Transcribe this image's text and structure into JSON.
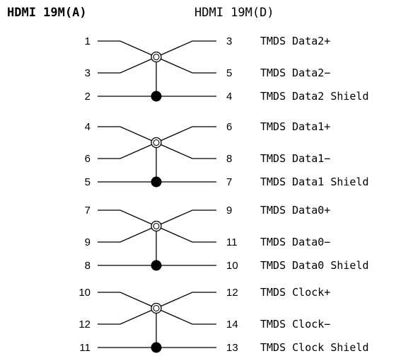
{
  "headers": {
    "left": "HDMI 19M(A)",
    "right": "HDMI 19M(D)"
  },
  "pairs": [
    {
      "pos": {
        "left": "1",
        "right": "3",
        "label": "TMDS Data2+"
      },
      "neg": {
        "left": "3",
        "right": "5",
        "label": "TMDS Data2−"
      },
      "shield": {
        "left": "2",
        "right": "4",
        "label": "TMDS Data2 Shield"
      }
    },
    {
      "pos": {
        "left": "4",
        "right": "6",
        "label": "TMDS Data1+"
      },
      "neg": {
        "left": "6",
        "right": "8",
        "label": "TMDS Data1−"
      },
      "shield": {
        "left": "5",
        "right": "7",
        "label": "TMDS Data1 Shield"
      }
    },
    {
      "pos": {
        "left": "7",
        "right": "9",
        "label": "TMDS Data0+"
      },
      "neg": {
        "left": "9",
        "right": "11",
        "label": "TMDS Data0−"
      },
      "shield": {
        "left": "8",
        "right": "10",
        "label": "TMDS Data0 Shield"
      }
    },
    {
      "pos": {
        "left": "10",
        "right": "12",
        "label": "TMDS Clock+"
      },
      "neg": {
        "left": "12",
        "right": "14",
        "label": "TMDS Clock−"
      },
      "shield": {
        "left": "11",
        "right": "13",
        "label": "TMDS Clock Shield"
      }
    }
  ]
}
